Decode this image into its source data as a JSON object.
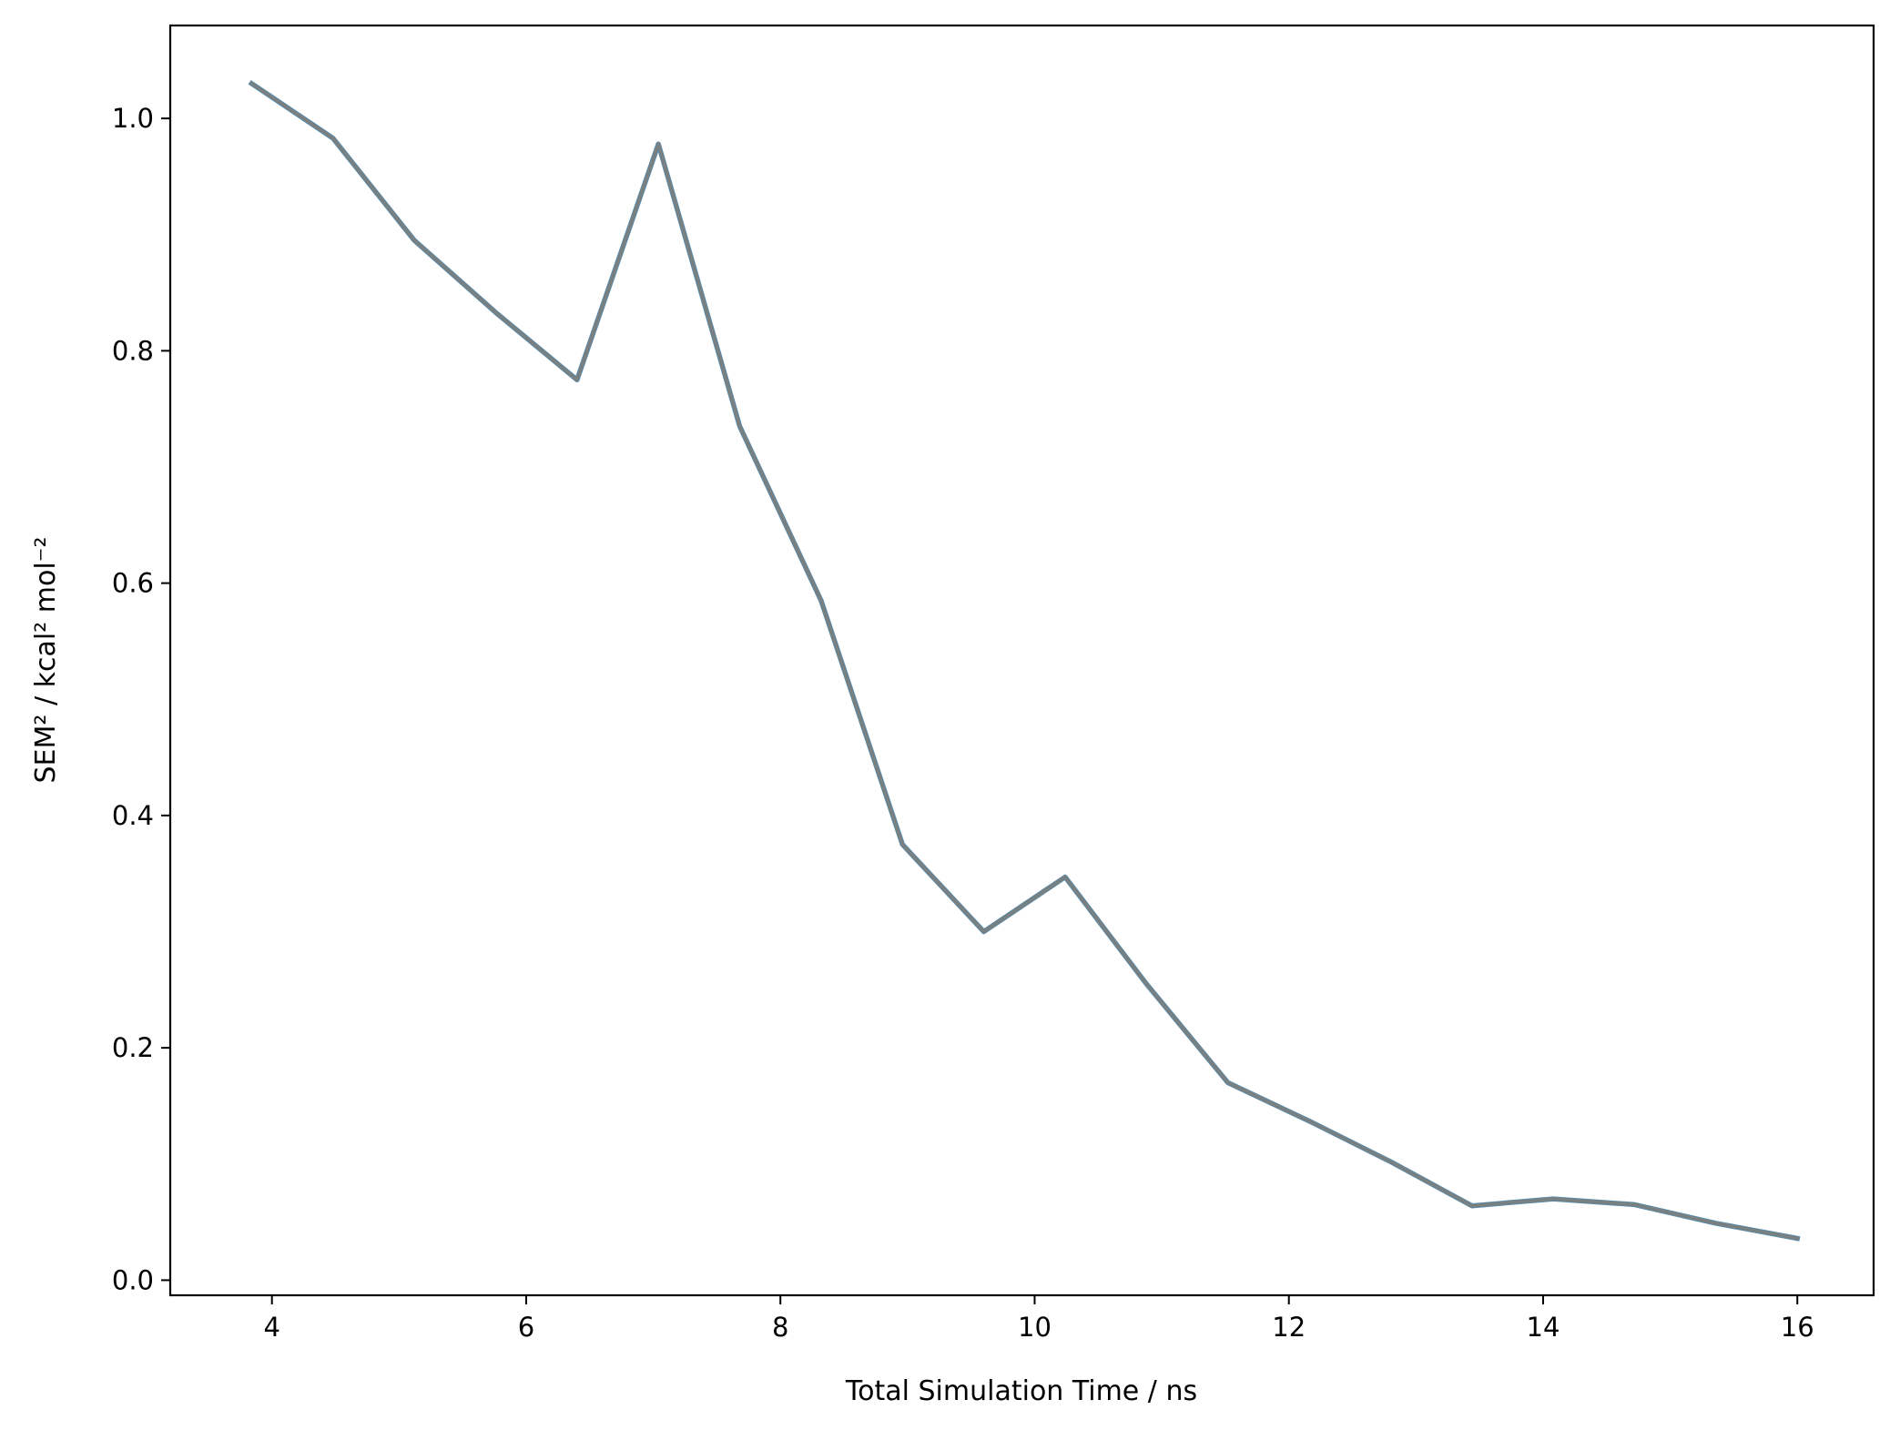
{
  "chart_data": {
    "type": "line",
    "title": "",
    "xlabel": "Total Simulation Time / ns",
    "ylabel": "SEM² / kcal² mol⁻²",
    "xlim": [
      3.2,
      16.6
    ],
    "ylim": [
      -0.013,
      1.08
    ],
    "xticks": [
      4,
      6,
      8,
      10,
      12,
      14,
      16
    ],
    "xtick_labels": [
      "4",
      "6",
      "8",
      "10",
      "12",
      "14",
      "16"
    ],
    "yticks": [
      0.0,
      0.2,
      0.4,
      0.6,
      0.8,
      1.0
    ],
    "ytick_labels": [
      "0.0",
      "0.2",
      "0.4",
      "0.6",
      "0.8",
      "1.0"
    ],
    "grid": false,
    "series": [
      {
        "color": "#7a7f7f",
        "overlay_color": "#5a8aa8",
        "x": [
          3.84,
          4.48,
          5.12,
          5.76,
          6.4,
          7.04,
          7.68,
          8.32,
          8.96,
          9.6,
          10.24,
          10.88,
          11.52,
          12.16,
          12.8,
          13.44,
          14.08,
          14.72,
          15.36,
          16.0
        ],
        "y": [
          1.03,
          0.983,
          0.895,
          0.833,
          0.775,
          0.978,
          0.735,
          0.585,
          0.375,
          0.3,
          0.347,
          0.255,
          0.17,
          0.137,
          0.102,
          0.064,
          0.07,
          0.065,
          0.049,
          0.036
        ]
      }
    ]
  }
}
